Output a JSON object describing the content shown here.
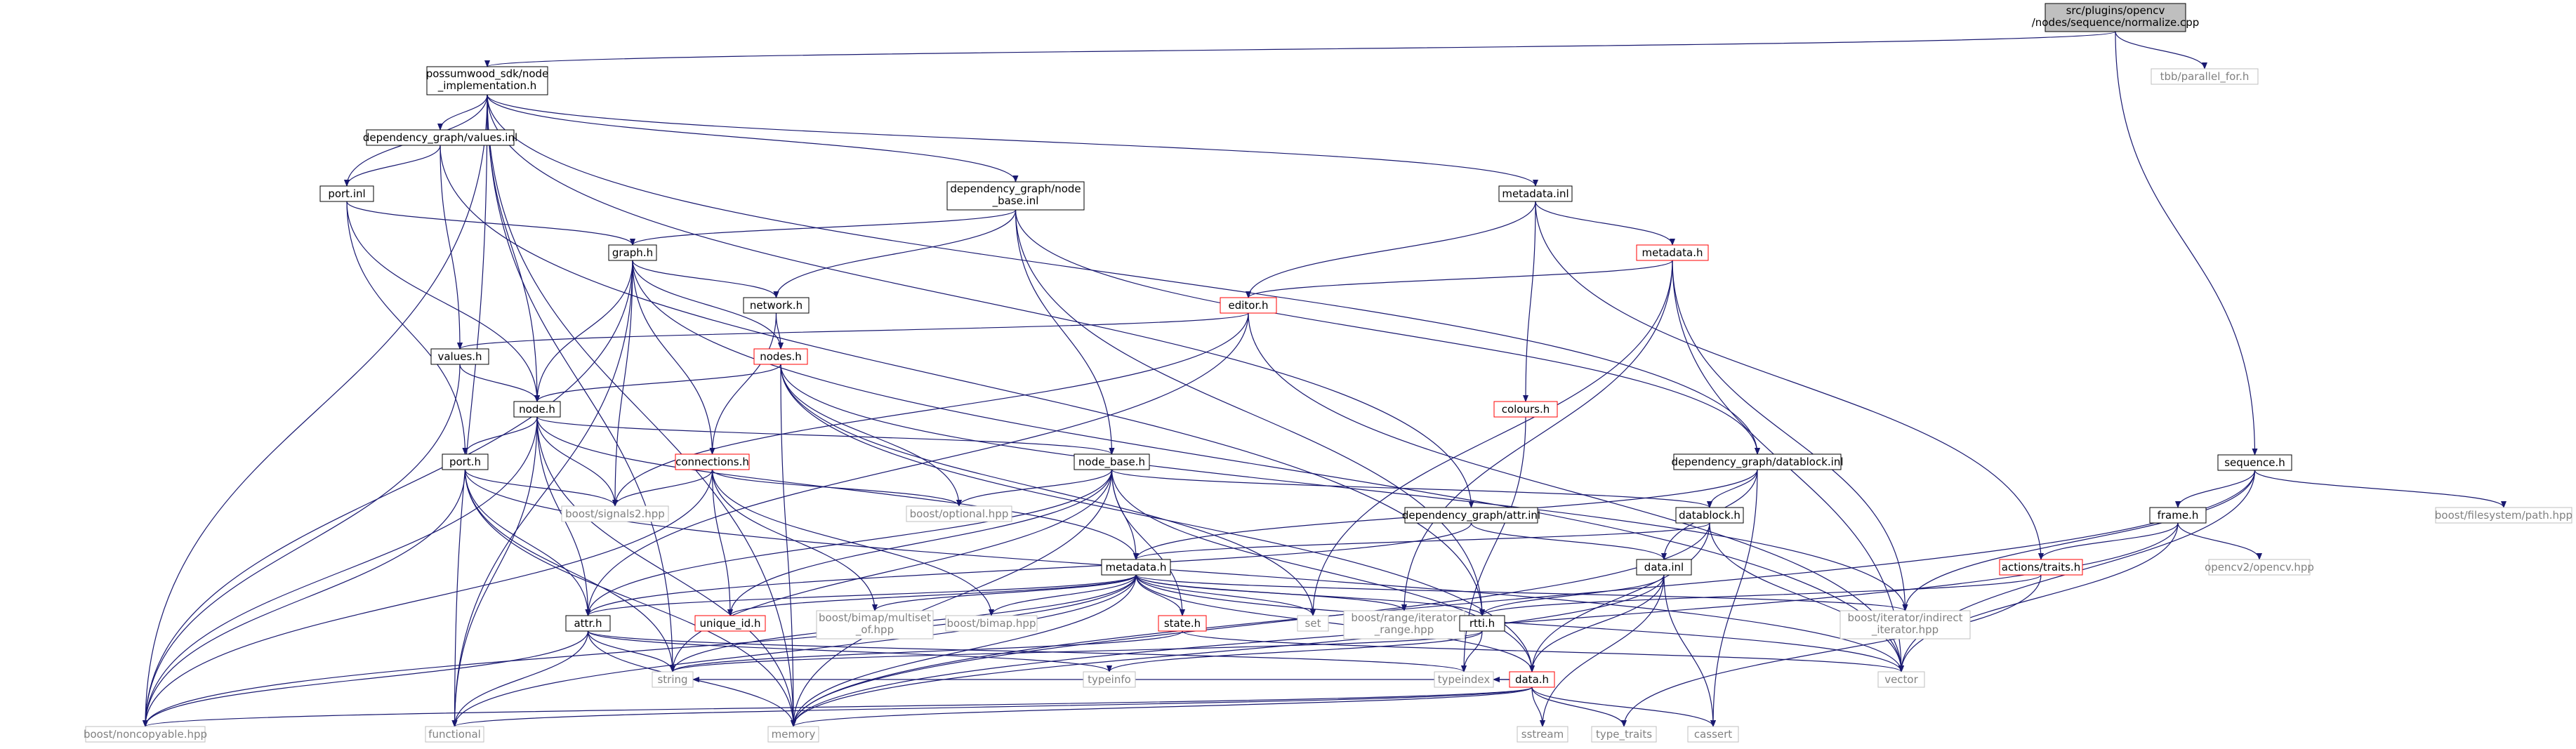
{
  "colors": {
    "edge": "#191970",
    "node_border_normal": "#000000",
    "node_border_truncated": "#ff0000",
    "node_border_external": "#bfbfbf",
    "root_fill": "#bfbfbf",
    "node_fill": "#ffffff",
    "text_external": "#808080",
    "text_normal": "#000000"
  },
  "nodes": [
    {
      "id": "root",
      "lines": [
        "src/plugins/opencv",
        "/nodes/sequence/normalize.cpp"
      ],
      "kind": "root"
    },
    {
      "id": "tbb_parallel_for",
      "lines": [
        "tbb/parallel_for.h"
      ],
      "kind": "external"
    },
    {
      "id": "possumwood_sdk",
      "lines": [
        "possumwood_sdk/node",
        "_implementation.h"
      ],
      "kind": "normal"
    },
    {
      "id": "sequence_h",
      "lines": [
        "sequence.h"
      ],
      "kind": "normal"
    },
    {
      "id": "dg_values_inl",
      "lines": [
        "dependency_graph/values.inl"
      ],
      "kind": "normal"
    },
    {
      "id": "port_inl",
      "lines": [
        "port.inl"
      ],
      "kind": "normal"
    },
    {
      "id": "dg_node_base_inl",
      "lines": [
        "dependency_graph/node",
        "_base.inl"
      ],
      "kind": "normal"
    },
    {
      "id": "metadata_inl",
      "lines": [
        "metadata.inl"
      ],
      "kind": "normal"
    },
    {
      "id": "graph_h",
      "lines": [
        "graph.h"
      ],
      "kind": "normal"
    },
    {
      "id": "metadata_h_red",
      "lines": [
        "metadata.h"
      ],
      "kind": "truncated"
    },
    {
      "id": "network_h",
      "lines": [
        "network.h"
      ],
      "kind": "normal"
    },
    {
      "id": "editor_h",
      "lines": [
        "editor.h"
      ],
      "kind": "truncated"
    },
    {
      "id": "values_h",
      "lines": [
        "values.h"
      ],
      "kind": "normal"
    },
    {
      "id": "nodes_h",
      "lines": [
        "nodes.h"
      ],
      "kind": "truncated"
    },
    {
      "id": "node_h",
      "lines": [
        "node.h"
      ],
      "kind": "normal"
    },
    {
      "id": "colours_h",
      "lines": [
        "colours.h"
      ],
      "kind": "truncated"
    },
    {
      "id": "dg_datablock_inl",
      "lines": [
        "dependency_graph/datablock.inl"
      ],
      "kind": "normal"
    },
    {
      "id": "port_h",
      "lines": [
        "port.h"
      ],
      "kind": "normal"
    },
    {
      "id": "connections_h",
      "lines": [
        "connections.h"
      ],
      "kind": "truncated"
    },
    {
      "id": "node_base_h",
      "lines": [
        "node_base.h"
      ],
      "kind": "normal"
    },
    {
      "id": "datablock_h",
      "lines": [
        "datablock.h"
      ],
      "kind": "normal"
    },
    {
      "id": "dg_attr_inl",
      "lines": [
        "dependency_graph/attr.inl"
      ],
      "kind": "normal"
    },
    {
      "id": "boost_signals2",
      "lines": [
        "boost/signals2.hpp"
      ],
      "kind": "external"
    },
    {
      "id": "boost_optional",
      "lines": [
        "boost/optional.hpp"
      ],
      "kind": "external"
    },
    {
      "id": "metadata_h",
      "lines": [
        "metadata.h"
      ],
      "kind": "normal"
    },
    {
      "id": "data_inl",
      "lines": [
        "data.inl"
      ],
      "kind": "normal"
    },
    {
      "id": "frame_h",
      "lines": [
        "frame.h"
      ],
      "kind": "normal"
    },
    {
      "id": "boost_filesystem",
      "lines": [
        "boost/filesystem/path.hpp"
      ],
      "kind": "external"
    },
    {
      "id": "actions_traits",
      "lines": [
        "actions/traits.h"
      ],
      "kind": "truncated"
    },
    {
      "id": "opencv2",
      "lines": [
        "opencv2/opencv.hpp"
      ],
      "kind": "external"
    },
    {
      "id": "unique_id",
      "lines": [
        "unique_id.h"
      ],
      "kind": "truncated"
    },
    {
      "id": "boost_bimap_multiset",
      "lines": [
        "boost/bimap/multiset",
        "_of.hpp"
      ],
      "kind": "external"
    },
    {
      "id": "boost_bimap",
      "lines": [
        "boost/bimap.hpp"
      ],
      "kind": "external"
    },
    {
      "id": "state_h",
      "lines": [
        "state.h"
      ],
      "kind": "truncated"
    },
    {
      "id": "set",
      "lines": [
        "set"
      ],
      "kind": "external"
    },
    {
      "id": "boost_range",
      "lines": [
        "boost/range/iterator",
        "_range.hpp"
      ],
      "kind": "external"
    },
    {
      "id": "rtti_h",
      "lines": [
        "rtti.h"
      ],
      "kind": "normal"
    },
    {
      "id": "boost_iterator",
      "lines": [
        "boost/iterator/indirect",
        "_iterator.hpp"
      ],
      "kind": "external"
    },
    {
      "id": "attr_h",
      "lines": [
        "attr.h"
      ],
      "kind": "normal"
    },
    {
      "id": "string",
      "lines": [
        "string"
      ],
      "kind": "external"
    },
    {
      "id": "typeinfo",
      "lines": [
        "typeinfo"
      ],
      "kind": "external"
    },
    {
      "id": "typeindex",
      "lines": [
        "typeindex"
      ],
      "kind": "external"
    },
    {
      "id": "data_h",
      "lines": [
        "data.h"
      ],
      "kind": "truncated"
    },
    {
      "id": "vector",
      "lines": [
        "vector"
      ],
      "kind": "external"
    },
    {
      "id": "boost_noncopyable",
      "lines": [
        "boost/noncopyable.hpp"
      ],
      "kind": "external"
    },
    {
      "id": "functional",
      "lines": [
        "functional"
      ],
      "kind": "external"
    },
    {
      "id": "memory",
      "lines": [
        "memory"
      ],
      "kind": "external"
    },
    {
      "id": "sstream",
      "lines": [
        "sstream"
      ],
      "kind": "external"
    },
    {
      "id": "type_traits",
      "lines": [
        "type_traits"
      ],
      "kind": "external"
    },
    {
      "id": "cassert",
      "lines": [
        "cassert"
      ],
      "kind": "external"
    }
  ],
  "edges": [
    [
      "root",
      "possumwood_sdk"
    ],
    [
      "root",
      "tbb_parallel_for"
    ],
    [
      "root",
      "sequence_h"
    ],
    [
      "possumwood_sdk",
      "dg_values_inl"
    ],
    [
      "possumwood_sdk",
      "port_inl"
    ],
    [
      "possumwood_sdk",
      "dg_node_base_inl"
    ],
    [
      "possumwood_sdk",
      "metadata_inl"
    ],
    [
      "possumwood_sdk",
      "dg_datablock_inl"
    ],
    [
      "possumwood_sdk",
      "dg_attr_inl"
    ],
    [
      "possumwood_sdk",
      "node_h"
    ],
    [
      "possumwood_sdk",
      "boost_noncopyable"
    ],
    [
      "possumwood_sdk",
      "functional"
    ],
    [
      "possumwood_sdk",
      "memory"
    ],
    [
      "possumwood_sdk",
      "string"
    ],
    [
      "dg_values_inl",
      "port_inl"
    ],
    [
      "dg_values_inl",
      "values_h"
    ],
    [
      "dg_values_inl",
      "rtti_h"
    ],
    [
      "port_inl",
      "graph_h"
    ],
    [
      "port_inl",
      "node_h"
    ],
    [
      "port_inl",
      "port_h"
    ],
    [
      "dg_node_base_inl",
      "graph_h"
    ],
    [
      "dg_node_base_inl",
      "network_h"
    ],
    [
      "dg_node_base_inl",
      "node_base_h"
    ],
    [
      "dg_node_base_inl",
      "dg_datablock_inl"
    ],
    [
      "dg_node_base_inl",
      "rtti_h"
    ],
    [
      "metadata_inl",
      "metadata_h_red"
    ],
    [
      "metadata_inl",
      "editor_h"
    ],
    [
      "metadata_inl",
      "colours_h"
    ],
    [
      "metadata_inl",
      "actions_traits"
    ],
    [
      "metadata_h_red",
      "editor_h"
    ],
    [
      "metadata_h_red",
      "boost_iterator"
    ],
    [
      "metadata_h_red",
      "vector"
    ],
    [
      "metadata_h_red",
      "set"
    ],
    [
      "metadata_h_red",
      "boost_range"
    ],
    [
      "graph_h",
      "network_h"
    ],
    [
      "graph_h",
      "nodes_h"
    ],
    [
      "graph_h",
      "connections_h"
    ],
    [
      "graph_h",
      "node_h"
    ],
    [
      "graph_h",
      "boost_signals2"
    ],
    [
      "graph_h",
      "boost_noncopyable"
    ],
    [
      "graph_h",
      "functional"
    ],
    [
      "graph_h",
      "vector"
    ],
    [
      "network_h",
      "nodes_h"
    ],
    [
      "network_h",
      "connections_h"
    ],
    [
      "editor_h",
      "values_h"
    ],
    [
      "editor_h",
      "boost_signals2"
    ],
    [
      "editor_h",
      "attr_h"
    ],
    [
      "editor_h",
      "vector"
    ],
    [
      "values_h",
      "node_h"
    ],
    [
      "values_h",
      "boost_noncopyable"
    ],
    [
      "nodes_h",
      "node_h"
    ],
    [
      "nodes_h",
      "boost_optional"
    ],
    [
      "nodes_h",
      "boost_iterator"
    ],
    [
      "nodes_h",
      "set"
    ],
    [
      "nodes_h",
      "memory"
    ],
    [
      "nodes_h",
      "data_h"
    ],
    [
      "node_h",
      "port_h"
    ],
    [
      "node_h",
      "node_base_h"
    ],
    [
      "node_h",
      "boost_signals2"
    ],
    [
      "node_h",
      "metadata_h"
    ],
    [
      "node_h",
      "attr_h"
    ],
    [
      "node_h",
      "boost_noncopyable"
    ],
    [
      "node_h",
      "functional"
    ],
    [
      "node_h",
      "memory"
    ],
    [
      "colours_h",
      "typeindex"
    ],
    [
      "dg_datablock_inl",
      "datablock_h"
    ],
    [
      "dg_datablock_inl",
      "data_inl"
    ],
    [
      "dg_datablock_inl",
      "metadata_h"
    ],
    [
      "dg_datablock_inl",
      "cassert"
    ],
    [
      "port_h",
      "boost_signals2"
    ],
    [
      "port_h",
      "attr_h"
    ],
    [
      "port_h",
      "string"
    ],
    [
      "port_h",
      "boost_noncopyable"
    ],
    [
      "port_h",
      "vector"
    ],
    [
      "port_h",
      "memory"
    ],
    [
      "connections_h",
      "boost_signals2"
    ],
    [
      "connections_h",
      "boost_optional"
    ],
    [
      "connections_h",
      "unique_id"
    ],
    [
      "connections_h",
      "boost_bimap_multiset"
    ],
    [
      "connections_h",
      "boost_bimap"
    ],
    [
      "connections_h",
      "boost_noncopyable"
    ],
    [
      "node_base_h",
      "boost_optional"
    ],
    [
      "node_base_h",
      "metadata_h"
    ],
    [
      "node_base_h",
      "datablock_h"
    ],
    [
      "node_base_h",
      "state_h"
    ],
    [
      "node_base_h",
      "unique_id"
    ],
    [
      "node_base_h",
      "attr_h"
    ],
    [
      "node_base_h",
      "data_h"
    ],
    [
      "node_base_h",
      "memory"
    ],
    [
      "node_base_h",
      "string"
    ],
    [
      "datablock_h",
      "metadata_h"
    ],
    [
      "datablock_h",
      "data_h"
    ],
    [
      "datablock_h",
      "vector"
    ],
    [
      "datablock_h",
      "memory"
    ],
    [
      "dg_attr_inl",
      "attr_h"
    ],
    [
      "dg_attr_inl",
      "data_inl"
    ],
    [
      "metadata_h",
      "attr_h"
    ],
    [
      "metadata_h",
      "unique_id"
    ],
    [
      "metadata_h",
      "boost_bimap_multiset"
    ],
    [
      "metadata_h",
      "boost_bimap"
    ],
    [
      "metadata_h",
      "state_h"
    ],
    [
      "metadata_h",
      "set"
    ],
    [
      "metadata_h",
      "boost_range"
    ],
    [
      "metadata_h",
      "boost_iterator"
    ],
    [
      "metadata_h",
      "rtti_h"
    ],
    [
      "metadata_h",
      "string"
    ],
    [
      "metadata_h",
      "data_h"
    ],
    [
      "metadata_h",
      "vector"
    ],
    [
      "metadata_h",
      "functional"
    ],
    [
      "metadata_h",
      "memory"
    ],
    [
      "metadata_h",
      "boost_noncopyable"
    ],
    [
      "data_inl",
      "rtti_h"
    ],
    [
      "data_inl",
      "data_h"
    ],
    [
      "data_inl",
      "sstream"
    ],
    [
      "data_inl",
      "cassert"
    ],
    [
      "data_inl",
      "memory"
    ],
    [
      "sequence_h",
      "frame_h"
    ],
    [
      "sequence_h",
      "boost_filesystem"
    ],
    [
      "sequence_h",
      "boost_iterator"
    ],
    [
      "sequence_h",
      "vector"
    ],
    [
      "sequence_h",
      "memory"
    ],
    [
      "frame_h",
      "actions_traits"
    ],
    [
      "frame_h",
      "opencv2"
    ],
    [
      "frame_h",
      "vector"
    ],
    [
      "frame_h",
      "memory"
    ],
    [
      "actions_traits",
      "rtti_h"
    ],
    [
      "actions_traits",
      "type_traits"
    ],
    [
      "state_h",
      "string"
    ],
    [
      "state_h",
      "vector"
    ],
    [
      "rtti_h",
      "typeinfo"
    ],
    [
      "rtti_h",
      "typeindex"
    ],
    [
      "rtti_h",
      "string"
    ],
    [
      "attr_h",
      "string"
    ],
    [
      "attr_h",
      "typeinfo"
    ],
    [
      "attr_h",
      "typeindex"
    ],
    [
      "attr_h",
      "boost_noncopyable"
    ],
    [
      "attr_h",
      "functional"
    ],
    [
      "attr_h",
      "memory"
    ],
    [
      "data_h",
      "functional"
    ],
    [
      "data_h",
      "memory"
    ],
    [
      "data_h",
      "sstream"
    ],
    [
      "data_h",
      "type_traits"
    ],
    [
      "data_h",
      "cassert"
    ],
    [
      "data_h",
      "boost_noncopyable"
    ],
    [
      "data_h",
      "typeindex"
    ],
    [
      "data_h",
      "string"
    ]
  ]
}
